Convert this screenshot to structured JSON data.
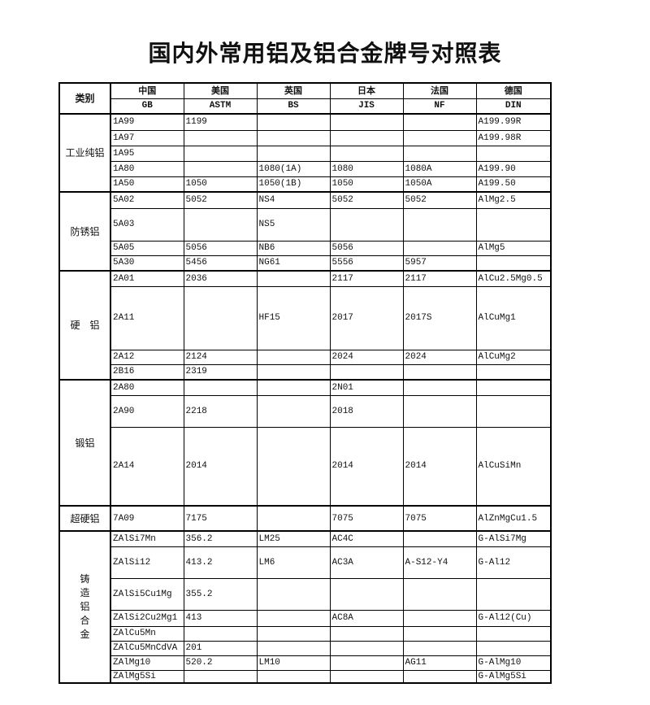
{
  "title": "国内外常用铝及铝合金牌号对照表",
  "header": {
    "category": "类别",
    "countries": [
      "中国",
      "美国",
      "英国",
      "日本",
      "法国",
      "德国"
    ],
    "standards": [
      "GB",
      "ASTM",
      "BS",
      "JIS",
      "NF",
      "DIN"
    ]
  },
  "groups": [
    {
      "category": "工业纯铝",
      "vertical": false,
      "rows": [
        [
          "1A99",
          "1199",
          "",
          "",
          "",
          "A199.99R"
        ],
        [
          "1A97",
          "",
          "",
          "",
          "",
          "A199.98R"
        ],
        [
          "1A95",
          "",
          "",
          "",
          "",
          ""
        ],
        [
          "1A80",
          "",
          "1080(1A)",
          "1080",
          "1080A",
          "A199.90"
        ],
        [
          "1A50",
          "1050",
          "1050(1B)",
          "1050",
          "1050A",
          "A199.50"
        ]
      ]
    },
    {
      "category": "防锈铝",
      "vertical": false,
      "rows": [
        [
          "5A02",
          "5052",
          "NS4",
          "5052",
          "5052",
          "AlMg2.5"
        ],
        [
          "5A03",
          "",
          "NS5",
          "",
          "",
          ""
        ],
        [
          "5A05",
          "5056",
          "NB6",
          "5056",
          "",
          "AlMg5"
        ],
        [
          "5A30",
          "5456",
          "NG61",
          "5556",
          "5957",
          ""
        ]
      ]
    },
    {
      "category": "硬　铝",
      "vertical": false,
      "rows": [
        [
          "2A01",
          "2036",
          "",
          "2117",
          "2117",
          "AlCu2.5Mg0.5"
        ],
        [
          "2A11",
          "",
          "HF15",
          "2017",
          "2017S",
          "AlCuMg1"
        ],
        [
          "2A12",
          "2124",
          "",
          "2024",
          "2024",
          "AlCuMg2"
        ],
        [
          "2B16",
          "2319",
          "",
          "",
          "",
          ""
        ]
      ]
    },
    {
      "category": "锻铝",
      "vertical": false,
      "rows": [
        [
          "2A80",
          "",
          "",
          "2N01",
          "",
          ""
        ],
        [
          "2A90",
          "2218",
          "",
          "2018",
          "",
          ""
        ],
        [
          "2A14",
          "2014",
          "",
          "2014",
          "2014",
          "AlCuSiMn"
        ]
      ]
    },
    {
      "category": "超硬铝",
      "vertical": false,
      "rows": [
        [
          "7A09",
          "7175",
          "",
          "7075",
          "7075",
          "AlZnMgCu1.5"
        ]
      ]
    },
    {
      "category": "铸造铝合金",
      "vertical": true,
      "rows": [
        [
          "ZAlSi7Mn",
          "356.2",
          "LM25",
          "AC4C",
          "",
          "G-AlSi7Mg"
        ],
        [
          "ZAlSi12",
          "413.2",
          "LM6",
          "AC3A",
          "A-S12-Y4",
          "G-Al12"
        ],
        [
          "ZAlSi5Cu1Mg",
          "355.2",
          "",
          "",
          "",
          ""
        ],
        [
          "ZAlSi2Cu2Mg1",
          "413",
          "",
          "AC8A",
          "",
          "G-Al12(Cu)"
        ],
        [
          "ZAlCu5Mn",
          "",
          "",
          "",
          "",
          ""
        ],
        [
          "ZAlCu5MnCdVA",
          "201",
          "",
          "",
          "",
          ""
        ],
        [
          "ZAlMg10",
          "520.2",
          "LM10",
          "",
          "AG11",
          "G-AlMg10"
        ],
        [
          "ZAlMg5Si",
          "",
          "",
          "",
          "",
          "G-AlMg5Si"
        ]
      ]
    }
  ]
}
